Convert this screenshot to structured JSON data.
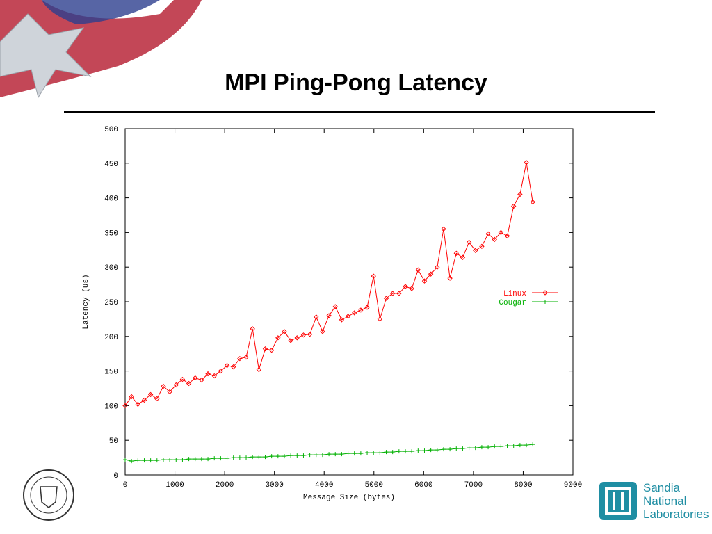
{
  "slide_title": "MPI Ping-Pong Latency",
  "chart_data": {
    "type": "line",
    "x_label": "Message Size (bytes)",
    "y_label": "Latency (us)",
    "xlim": [
      0,
      9000
    ],
    "xticks": [
      0,
      1000,
      2000,
      3000,
      4000,
      5000,
      6000,
      7000,
      8000,
      9000
    ],
    "ylim": [
      0,
      500
    ],
    "yticks": [
      0,
      50,
      100,
      150,
      200,
      250,
      300,
      350,
      400,
      450,
      500
    ],
    "legend": "right",
    "x": [
      0,
      128,
      256,
      384,
      512,
      640,
      768,
      896,
      1024,
      1152,
      1280,
      1408,
      1536,
      1664,
      1792,
      1920,
      2048,
      2176,
      2304,
      2432,
      2560,
      2688,
      2816,
      2944,
      3072,
      3200,
      3328,
      3456,
      3584,
      3712,
      3840,
      3968,
      4096,
      4224,
      4352,
      4480,
      4608,
      4736,
      4864,
      4992,
      5120,
      5248,
      5376,
      5504,
      5632,
      5760,
      5888,
      6016,
      6144,
      6272,
      6400,
      6528,
      6656,
      6784,
      6912,
      7040,
      7168,
      7296,
      7424,
      7552,
      7680,
      7808,
      7936,
      8064,
      8192
    ],
    "series": [
      {
        "name": "Linux",
        "color": "#ff0000",
        "marker": "diamond",
        "values": [
          100,
          113,
          102,
          108,
          116,
          110,
          128,
          120,
          130,
          138,
          132,
          140,
          137,
          146,
          143,
          150,
          158,
          156,
          168,
          170,
          211,
          152,
          182,
          180,
          198,
          207,
          194,
          198,
          202,
          203,
          228,
          207,
          230,
          243,
          224,
          229,
          234,
          238,
          242,
          287,
          225,
          255,
          262,
          262,
          272,
          269,
          296,
          280,
          290,
          300,
          355,
          284,
          320,
          314,
          336,
          324,
          330,
          348,
          340,
          350,
          345,
          388,
          405,
          451,
          394
        ]
      },
      {
        "name": "Cougar",
        "color": "#00b000",
        "marker": "plus",
        "values": [
          22,
          20,
          21,
          21,
          21,
          21,
          22,
          22,
          22,
          22,
          23,
          23,
          23,
          23,
          24,
          24,
          24,
          25,
          25,
          25,
          26,
          26,
          26,
          27,
          27,
          27,
          28,
          28,
          28,
          29,
          29,
          29,
          30,
          30,
          30,
          31,
          31,
          31,
          32,
          32,
          32,
          33,
          33,
          34,
          34,
          34,
          35,
          35,
          36,
          36,
          37,
          37,
          38,
          38,
          39,
          39,
          40,
          40,
          41,
          41,
          42,
          42,
          43,
          43,
          44
        ]
      }
    ]
  },
  "logo": {
    "lines": [
      "Sandia",
      "National",
      "Laboratories"
    ]
  }
}
